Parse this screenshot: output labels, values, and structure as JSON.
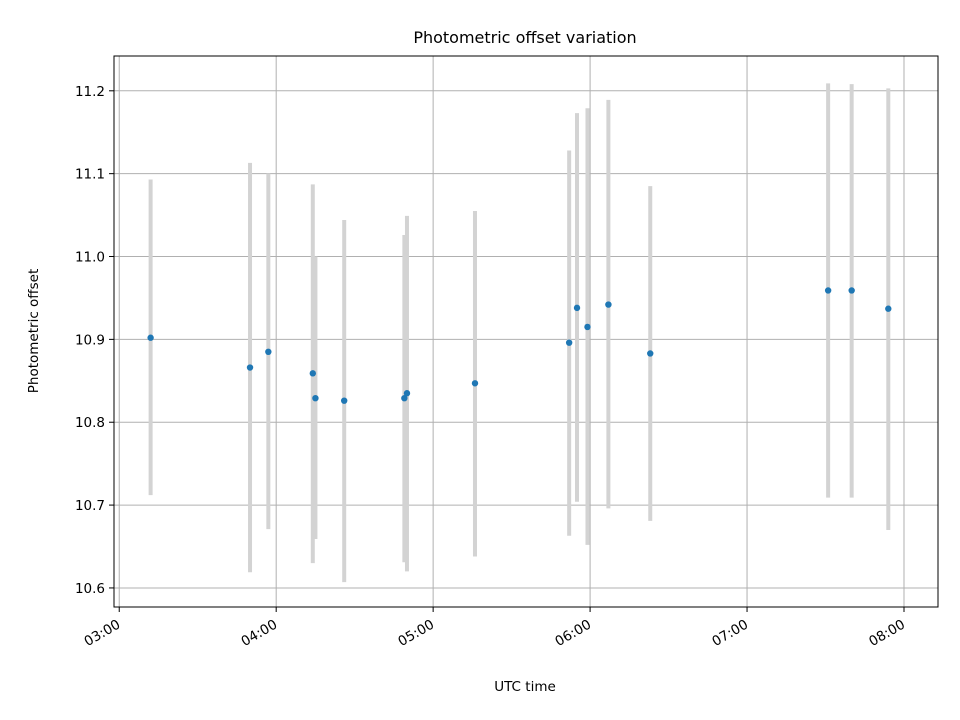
{
  "chart_data": {
    "type": "scatter",
    "title": "Photometric offset variation",
    "xlabel": "UTC time",
    "ylabel": "Photometric offset",
    "xlim": [
      "02:58",
      "08:13"
    ],
    "ylim": [
      10.577,
      11.242
    ],
    "x_ticks": [
      "03:00",
      "04:00",
      "05:00",
      "06:00",
      "07:00",
      "08:00"
    ],
    "y_ticks": [
      "10.6",
      "10.7",
      "10.8",
      "10.9",
      "11.0",
      "11.1",
      "11.2"
    ],
    "grid": true,
    "point_color": "#1f77b4",
    "errorbar_color": "#d3d3d3",
    "points": [
      {
        "x": "03:12",
        "y": 10.902,
        "ymin": 10.712,
        "ymax": 11.093
      },
      {
        "x": "03:50",
        "y": 10.866,
        "ymin": 10.619,
        "ymax": 11.113
      },
      {
        "x": "03:57",
        "y": 10.885,
        "ymin": 10.671,
        "ymax": 11.1
      },
      {
        "x": "04:14",
        "y": 10.859,
        "ymin": 10.63,
        "ymax": 11.087
      },
      {
        "x": "04:15",
        "y": 10.829,
        "ymin": 10.659,
        "ymax": 11.0
      },
      {
        "x": "04:26",
        "y": 10.826,
        "ymin": 10.607,
        "ymax": 11.044
      },
      {
        "x": "04:49",
        "y": 10.829,
        "ymin": 10.631,
        "ymax": 11.026
      },
      {
        "x": "04:50",
        "y": 10.835,
        "ymin": 10.62,
        "ymax": 11.049
      },
      {
        "x": "05:16",
        "y": 10.847,
        "ymin": 10.638,
        "ymax": 11.055
      },
      {
        "x": "05:52",
        "y": 10.896,
        "ymin": 10.663,
        "ymax": 11.128
      },
      {
        "x": "05:55",
        "y": 10.938,
        "ymin": 10.704,
        "ymax": 11.173
      },
      {
        "x": "05:59",
        "y": 10.915,
        "ymin": 10.652,
        "ymax": 11.179
      },
      {
        "x": "06:07",
        "y": 10.942,
        "ymin": 10.696,
        "ymax": 11.189
      },
      {
        "x": "06:23",
        "y": 10.883,
        "ymin": 10.681,
        "ymax": 11.085
      },
      {
        "x": "07:31",
        "y": 10.959,
        "ymin": 10.709,
        "ymax": 11.209
      },
      {
        "x": "07:40",
        "y": 10.959,
        "ymin": 10.709,
        "ymax": 11.208
      },
      {
        "x": "07:54",
        "y": 10.937,
        "ymin": 10.67,
        "ymax": 11.203
      }
    ]
  }
}
